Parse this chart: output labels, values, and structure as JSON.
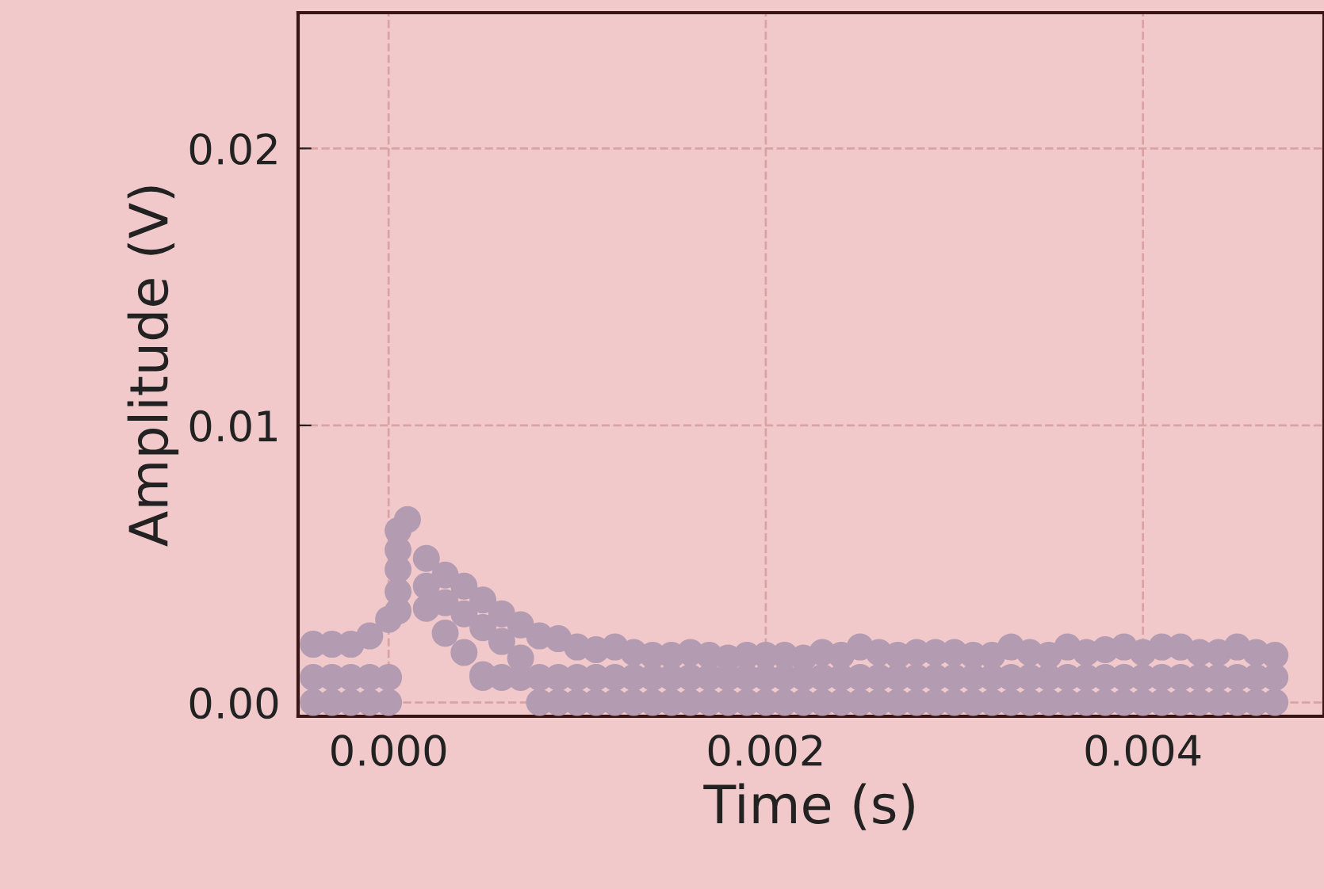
{
  "chart_data": {
    "type": "scatter",
    "xlabel": "Time (s)",
    "ylabel": "Amplitude (V)",
    "xlim": [
      -0.00048,
      0.00496
    ],
    "ylim": [
      -0.0005,
      0.0249
    ],
    "xticks": [
      {
        "value": 0,
        "label": "0.000"
      },
      {
        "value": 0.002,
        "label": "0.002"
      },
      {
        "value": 0.004,
        "label": "0.004"
      }
    ],
    "yticks": [
      {
        "value": 0,
        "label": "0.00"
      },
      {
        "value": 0.01,
        "label": "0.01"
      },
      {
        "value": 0.02,
        "label": "0.02"
      }
    ],
    "grid": true,
    "marker": "circle",
    "series": [
      {
        "color": "#b39bb1",
        "x": [
          -0.0004,
          -0.0003,
          -0.0002,
          -0.0001,
          0.0,
          0.0001,
          0.0002,
          0.0003,
          0.0004,
          0.0005,
          0.0006,
          0.0007,
          0.0008,
          0.0009,
          0.001,
          0.0011,
          0.0012,
          0.0013,
          0.0014,
          0.0015,
          0.0016,
          0.0017,
          0.0018,
          0.0019,
          0.002,
          0.0021,
          0.0022,
          0.0023,
          0.0024,
          0.0025,
          0.0026,
          0.0027,
          0.0028,
          0.0029,
          0.003,
          0.0031,
          0.0032,
          0.0033,
          0.0034,
          0.0035,
          0.0036,
          0.0037,
          0.0038,
          0.0039,
          0.004,
          0.0041,
          0.0042,
          0.0043,
          0.0044,
          0.0045,
          0.0046,
          0.0047,
          5e-05,
          5e-05,
          5e-05,
          5e-05,
          5e-05,
          0.0002,
          0.0002,
          0.0003,
          0.0003,
          0.0004,
          0.0004,
          0.0005,
          0.0005,
          0.0006,
          0.0007,
          -0.0004,
          -0.0003,
          -0.0002,
          -0.0001,
          0.0,
          0.0008,
          0.0009,
          0.001,
          0.0011,
          0.0012,
          0.0013,
          0.0014,
          0.0015,
          0.0016,
          0.0017,
          0.0018,
          0.0019,
          0.002,
          0.0021,
          0.0022,
          0.0023,
          0.0024,
          0.0025,
          0.0026,
          0.0027,
          0.0028,
          0.0029,
          0.003,
          0.0031,
          0.0032,
          0.0033,
          0.0034,
          0.0035,
          0.0036,
          0.0037,
          0.0038,
          0.0039,
          0.004,
          0.0041,
          0.0042,
          0.0043,
          0.0044,
          0.0045,
          0.0046,
          0.0047,
          -0.0004,
          -0.0003,
          -0.0002,
          -0.0001,
          0.0,
          0.0005,
          0.0006,
          0.0007,
          0.0008,
          0.0009,
          0.001,
          0.0011,
          0.0012,
          0.0013,
          0.0014,
          0.0015,
          0.0016,
          0.0017,
          0.0018,
          0.0019,
          0.002,
          0.0021,
          0.0022,
          0.0023,
          0.0024,
          0.0025,
          0.0026,
          0.0027,
          0.0028,
          0.0029,
          0.003,
          0.0031,
          0.0032,
          0.0033,
          0.0034,
          0.0035,
          0.0036,
          0.0037,
          0.0038,
          0.0039,
          0.004,
          0.0041,
          0.0042,
          0.0043,
          0.0044,
          0.0045,
          0.0046,
          0.0047
        ],
        "values": [
          0.0021,
          0.0021,
          0.0021,
          0.0024,
          0.003,
          0.0066,
          0.0052,
          0.0046,
          0.0042,
          0.0037,
          0.0032,
          0.0028,
          0.0024,
          0.0023,
          0.002,
          0.0019,
          0.002,
          0.0018,
          0.0017,
          0.0017,
          0.0018,
          0.0017,
          0.0016,
          0.0017,
          0.0017,
          0.0017,
          0.0016,
          0.0018,
          0.0017,
          0.002,
          0.0018,
          0.0017,
          0.0018,
          0.0018,
          0.0018,
          0.0017,
          0.0017,
          0.002,
          0.0018,
          0.0017,
          0.002,
          0.0018,
          0.0019,
          0.002,
          0.0018,
          0.002,
          0.002,
          0.0018,
          0.0018,
          0.002,
          0.0018,
          0.0017,
          0.0062,
          0.0055,
          0.0048,
          0.004,
          0.0033,
          0.0042,
          0.0034,
          0.0036,
          0.0025,
          0.0032,
          0.0018,
          0.0027,
          0.001,
          0.0022,
          0.0016,
          0.0,
          0.0,
          0.0,
          0.0,
          0.0,
          0.0,
          0.0,
          0.0,
          0.0,
          0.0,
          0.0,
          0.0,
          0.0,
          0.0,
          0.0,
          0.0,
          0.0,
          0.0,
          0.0,
          0.0,
          0.0,
          0.0,
          0.0,
          0.0,
          0.0,
          0.0,
          0.0,
          0.0,
          0.0,
          0.0,
          0.0,
          0.0,
          0.0,
          0.0,
          0.0,
          0.0,
          0.0,
          0.0,
          0.0,
          0.0,
          0.0,
          0.0,
          0.0,
          0.0,
          0.0,
          0.0009,
          0.0009,
          0.0009,
          0.0009,
          0.0009,
          0.0009,
          0.0009,
          0.0009,
          0.0009,
          0.0009,
          0.0009,
          0.0009,
          0.0009,
          0.0009,
          0.0009,
          0.0009,
          0.0009,
          0.0009,
          0.0009,
          0.0009,
          0.0009,
          0.0009,
          0.0009,
          0.0009,
          0.0009,
          0.0009,
          0.0009,
          0.0009,
          0.0009,
          0.0009,
          0.0009,
          0.0009,
          0.0009,
          0.0009,
          0.0009,
          0.0009,
          0.0009,
          0.0009,
          0.0009,
          0.0009,
          0.0009,
          0.0009,
          0.0009,
          0.0009,
          0.0009,
          0.0009,
          0.0009,
          0.0009
        ]
      }
    ]
  }
}
